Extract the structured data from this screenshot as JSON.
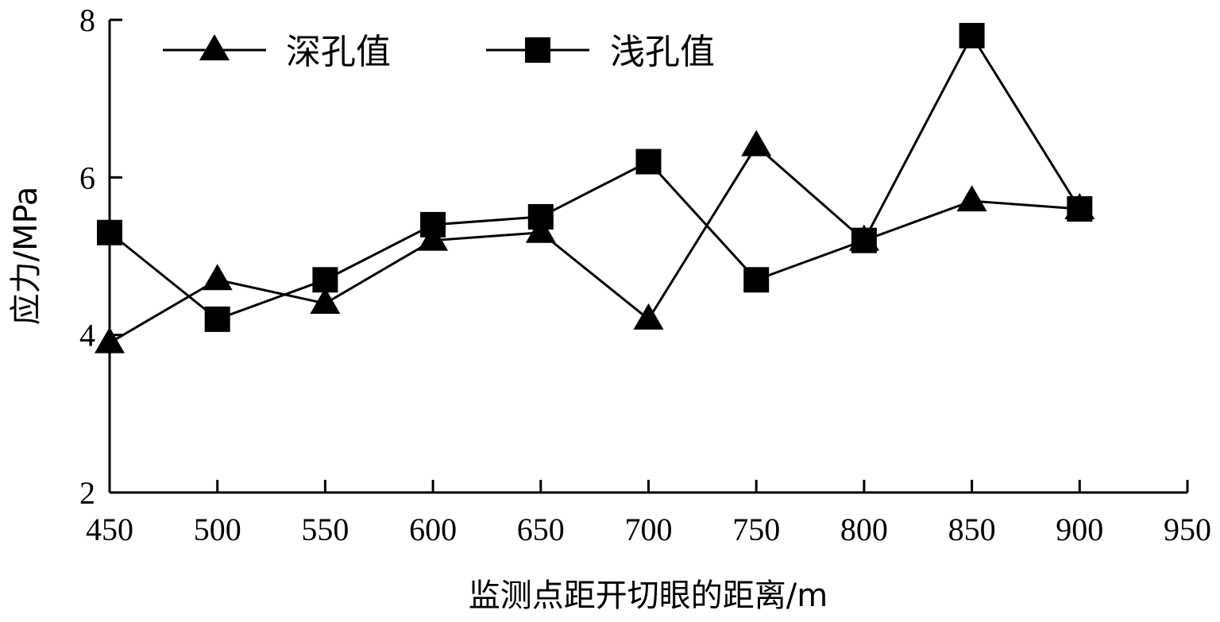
{
  "chart_data": {
    "type": "line",
    "x": [
      450,
      500,
      550,
      600,
      650,
      700,
      750,
      800,
      850,
      900
    ],
    "series": [
      {
        "name": "深孔值",
        "marker": "triangle",
        "values": [
          3.9,
          4.7,
          4.4,
          5.2,
          5.3,
          4.2,
          6.4,
          5.2,
          5.7,
          5.6
        ]
      },
      {
        "name": "浅孔值",
        "marker": "square",
        "values": [
          5.3,
          4.2,
          4.7,
          5.4,
          5.5,
          6.2,
          4.7,
          5.2,
          7.8,
          5.6
        ]
      }
    ],
    "xlabel": "监测点距开切眼的距离/m",
    "ylabel": "应力/MPa",
    "xlim": [
      450,
      950
    ],
    "ylim": [
      2,
      8
    ],
    "xticks": [
      "450",
      "500",
      "550",
      "600",
      "650",
      "700",
      "750",
      "800",
      "850",
      "900",
      "950"
    ],
    "yticks": [
      "2",
      "4",
      "6",
      "8"
    ],
    "grid": false,
    "legend_position": "top-left",
    "line_color": "#000000"
  }
}
